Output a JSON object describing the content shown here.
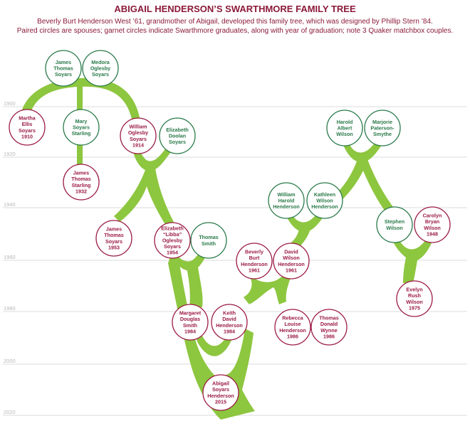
{
  "title": "ABIGAIL HENDERSON’S SWARTHMORE FAMILY TREE",
  "subtitle_lines": [
    "Beverly Burt Henderson West ’61, grandmother of Abigail, developed this family tree, which was designed by Phillip Stern ’84.",
    "Paired circles are spouses; garnet circles indicate Swarthmore graduates, along with year of graduation; note 3 Quaker matchbox couples."
  ],
  "year_labels": [
    "1900",
    "1920",
    "1940",
    "1960",
    "1980",
    "2000",
    "2020"
  ],
  "colors": {
    "garnet": "#9b1b45",
    "green": "#2a7a4a",
    "branch": "#8dc63f",
    "title": "#8b1a3a"
  },
  "people": [
    {
      "id": "james-thomas-soyars-sr",
      "lines": [
        "James",
        "Thomas",
        "Soyars"
      ],
      "swarthmore": false
    },
    {
      "id": "medora-oglesby-soyars",
      "lines": [
        "Medora",
        "Oglesby",
        "Soyars"
      ],
      "swarthmore": false
    },
    {
      "id": "martha-ellis-soyars",
      "lines": [
        "Martha",
        "Ellis",
        "Soyars",
        "1910"
      ],
      "swarthmore": true
    },
    {
      "id": "mary-soyars-starling",
      "lines": [
        "Mary",
        "Soyars",
        "Starling"
      ],
      "swarthmore": false
    },
    {
      "id": "william-oglesby-soyars",
      "lines": [
        "William",
        "Oglesby",
        "Soyars",
        "1914"
      ],
      "swarthmore": true
    },
    {
      "id": "elizabeth-doolan-soyars",
      "lines": [
        "Elizabeth",
        "Doolan",
        "Soyars"
      ],
      "swarthmore": false
    },
    {
      "id": "james-thomas-starling",
      "lines": [
        "James",
        "Thomas",
        "Starling",
        "1932"
      ],
      "swarthmore": true
    },
    {
      "id": "james-thomas-soyars-jr",
      "lines": [
        "James",
        "Thomas",
        "Soyars",
        "1953"
      ],
      "swarthmore": true
    },
    {
      "id": "elizabeth-libba-oglesby-soyars",
      "lines": [
        "Elizabeth",
        "“Libba”",
        "Oglesby",
        "Soyars",
        "1954"
      ],
      "swarthmore": true
    },
    {
      "id": "thomas-smith",
      "lines": [
        "Thomas",
        "Smith"
      ],
      "swarthmore": false
    },
    {
      "id": "harold-albert-wilson",
      "lines": [
        "Harold",
        "Albert",
        "Wilson"
      ],
      "swarthmore": false
    },
    {
      "id": "marjorie-paterson-smythe",
      "lines": [
        "Marjorie",
        "Paterson-",
        "Smythe"
      ],
      "swarthmore": false
    },
    {
      "id": "william-harold-henderson",
      "lines": [
        "William",
        "Harold",
        "Henderson"
      ],
      "swarthmore": false
    },
    {
      "id": "kathleen-wilson-henderson",
      "lines": [
        "Kathleen",
        "Wilson",
        "Henderson"
      ],
      "swarthmore": false
    },
    {
      "id": "stephen-wilson",
      "lines": [
        "Stephen",
        "Wilson"
      ],
      "swarthmore": false
    },
    {
      "id": "carolyn-bryan-wilson",
      "lines": [
        "Carolyn",
        "Bryan",
        "Wilson",
        "1948"
      ],
      "swarthmore": true
    },
    {
      "id": "beverly-burt-henderson",
      "lines": [
        "Beverly",
        "Burt",
        "Henderson",
        "1961"
      ],
      "swarthmore": true
    },
    {
      "id": "david-wilson-henderson",
      "lines": [
        "David",
        "Wilson",
        "Henderson",
        "1961"
      ],
      "swarthmore": true
    },
    {
      "id": "evelyn-rush-wilson",
      "lines": [
        "Evelyn",
        "Rush",
        "Wilson",
        "1975"
      ],
      "swarthmore": true
    },
    {
      "id": "margaret-douglas-smith",
      "lines": [
        "Margaret",
        "Douglas",
        "Smith",
        "1984"
      ],
      "swarthmore": true
    },
    {
      "id": "keith-david-henderson",
      "lines": [
        "Keith",
        "David",
        "Henderson",
        "1984"
      ],
      "swarthmore": true
    },
    {
      "id": "rebecca-louise-henderson",
      "lines": [
        "Rebecca",
        "Louise",
        "Henderson",
        "1986"
      ],
      "swarthmore": true
    },
    {
      "id": "thomas-donald-wynne",
      "lines": [
        "Thomas",
        "Donald",
        "Wynne",
        "1986"
      ],
      "swarthmore": true
    },
    {
      "id": "abigail-soyars-henderson",
      "lines": [
        "Abigail",
        "Soyars",
        "Henderson",
        "2015"
      ],
      "swarthmore": true
    }
  ]
}
